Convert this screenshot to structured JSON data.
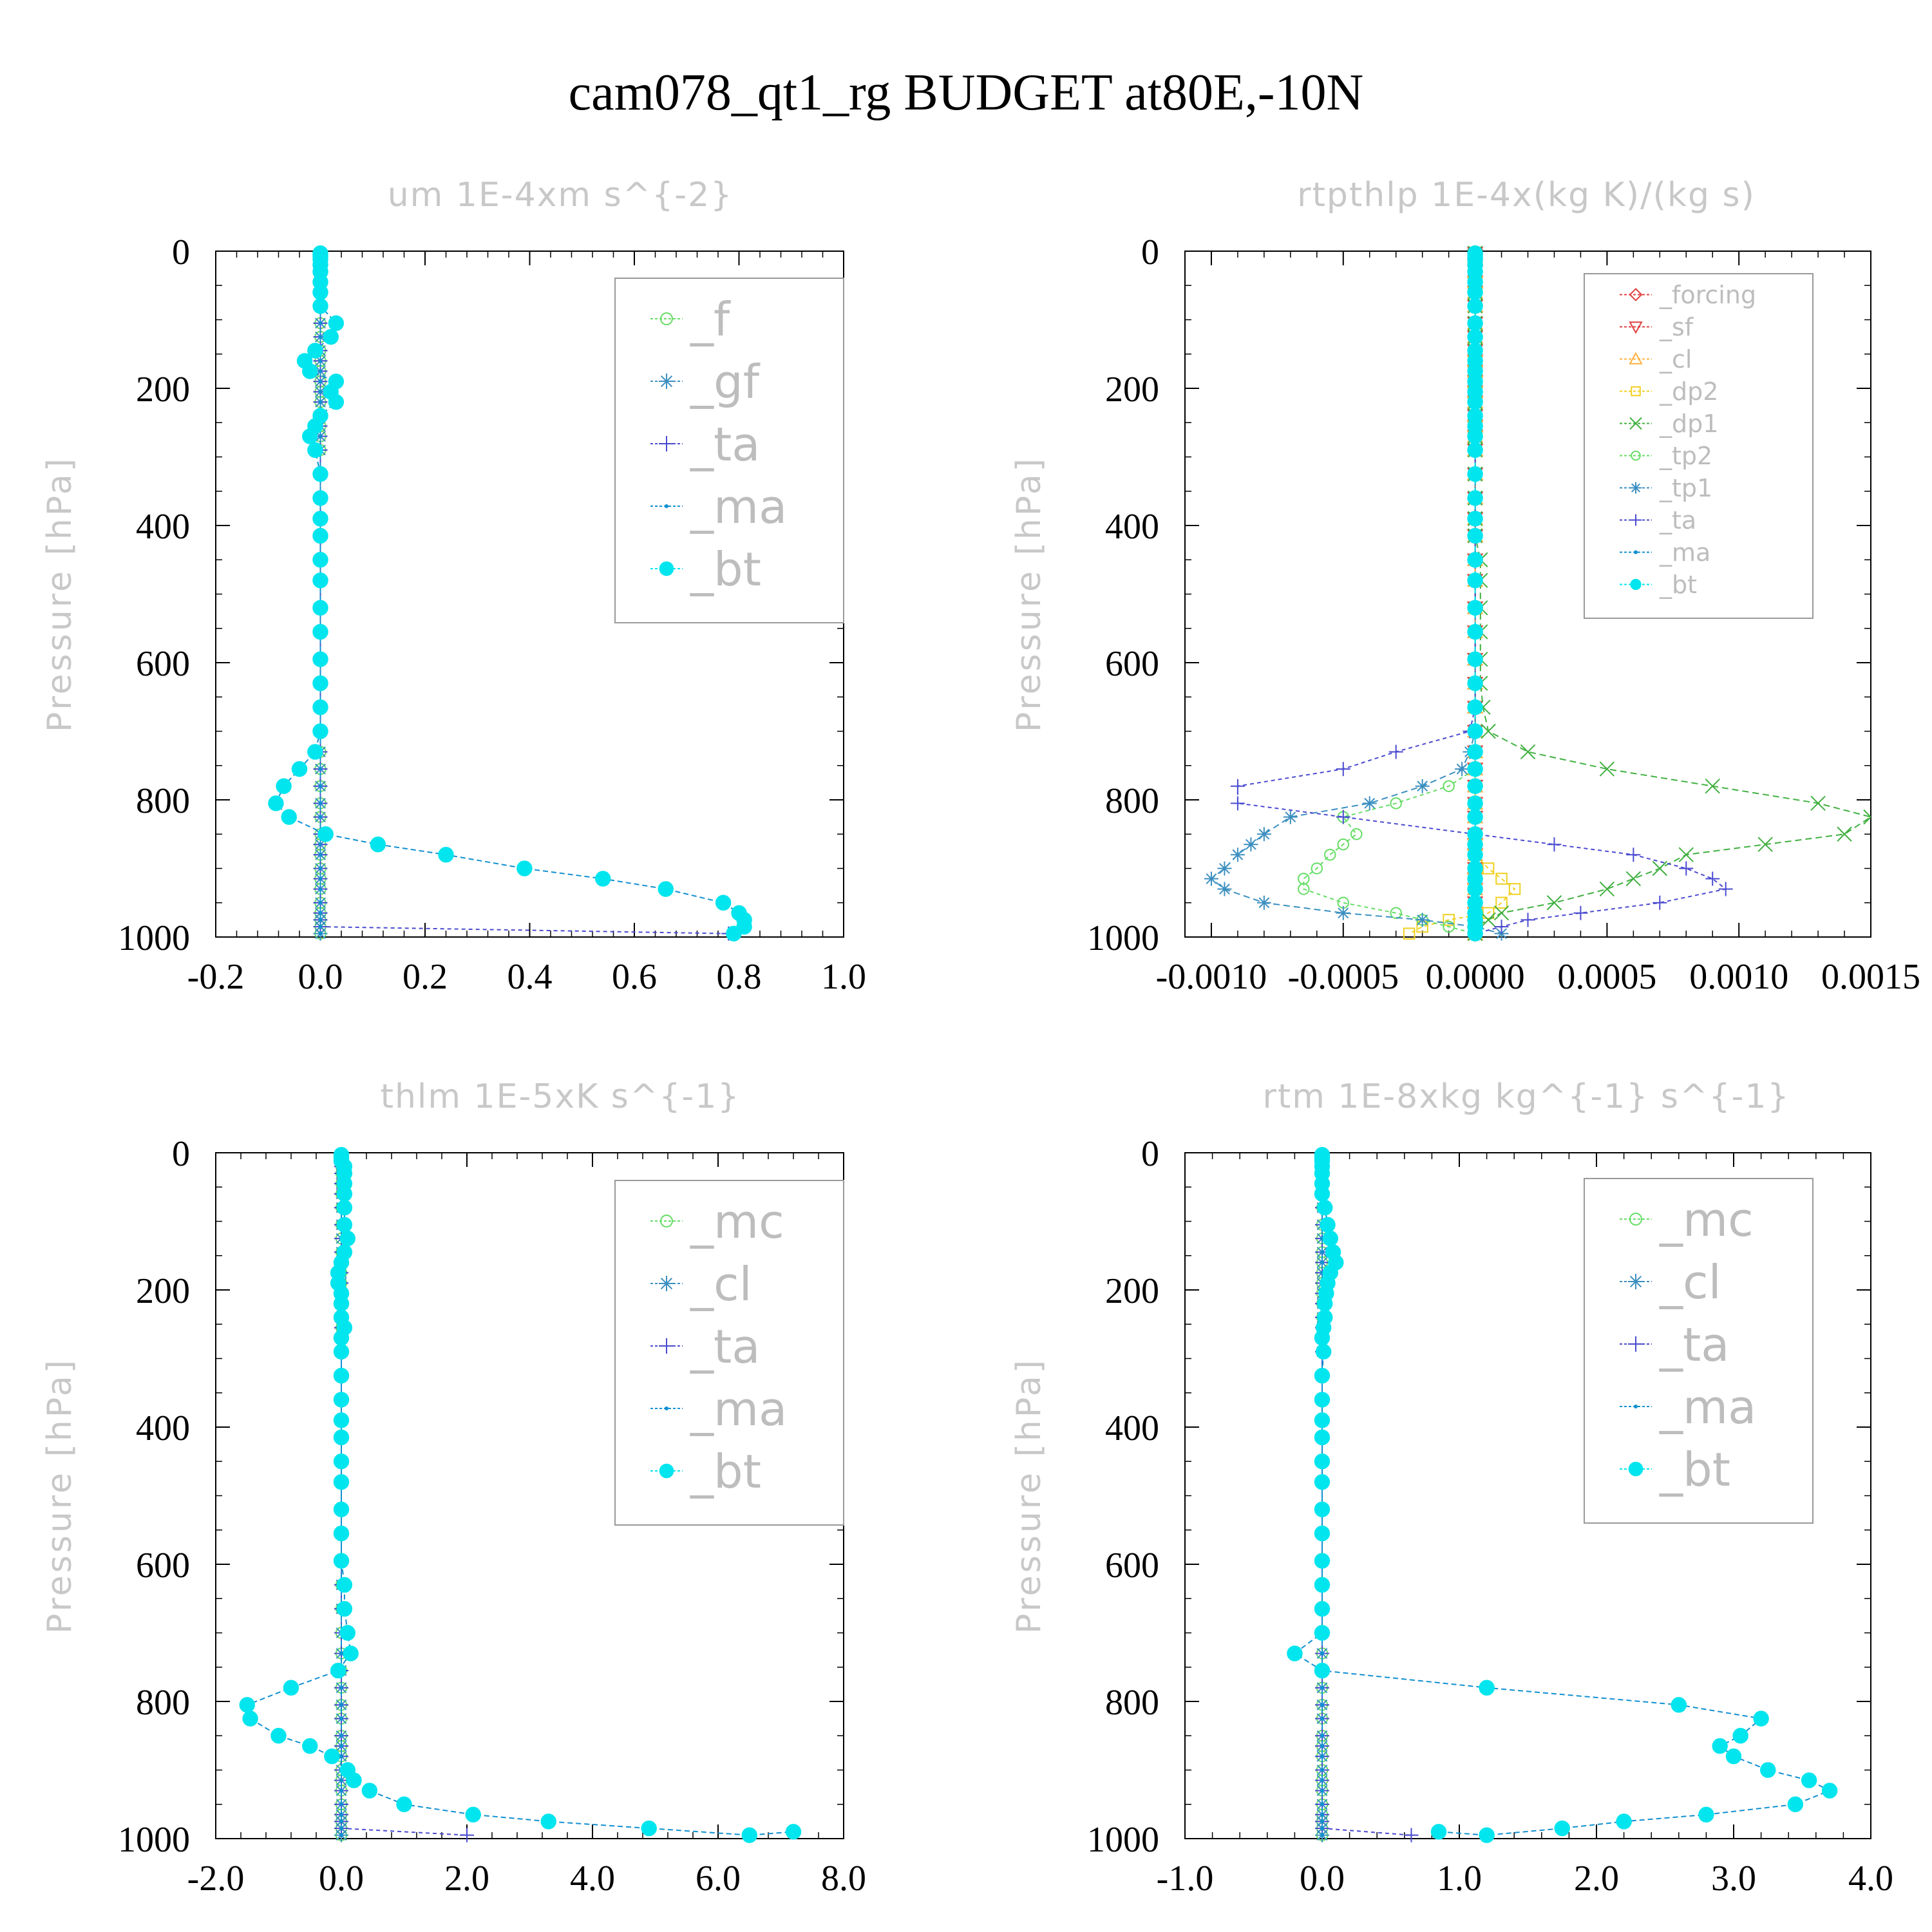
{
  "page_title": "cam078_qt1_rg  BUDGET at80E,-10N",
  "chart_data": [
    {
      "type": "line",
      "title": "um   1E-4xm s^{-2}",
      "ylabel": "Pressure [hPa]",
      "xlim": [
        -0.2,
        1.0
      ],
      "ylim": [
        0,
        1000
      ],
      "y_reversed": true,
      "xticks": [
        -0.2,
        0.0,
        0.2,
        0.4,
        0.6,
        0.8,
        1.0
      ],
      "xtick_labels": [
        "-0.2",
        "0.0",
        "0.2",
        "0.4",
        "0.6",
        "0.8",
        "1.0"
      ],
      "yticks": [
        0,
        200,
        400,
        600,
        800,
        1000
      ],
      "ytick_labels": [
        "0",
        "200",
        "400",
        "600",
        "800",
        "1000"
      ],
      "levels": [
        3,
        7,
        12,
        20,
        30,
        45,
        60,
        80,
        105,
        125,
        145,
        160,
        175,
        190,
        205,
        220,
        240,
        255,
        270,
        290,
        325,
        360,
        390,
        415,
        450,
        480,
        520,
        555,
        595,
        630,
        665,
        700,
        730,
        755,
        780,
        805,
        825,
        850,
        865,
        880,
        900,
        915,
        930,
        950,
        965,
        975,
        985,
        995
      ],
      "legend": [
        "_f",
        "_gf",
        "_ta",
        "_ma",
        "_bt"
      ],
      "series": [
        {
          "name": "_f",
          "color": "#66dd66",
          "marker": "circle-open",
          "constant": 0
        },
        {
          "name": "_gf",
          "color": "#3b8fc0",
          "marker": "star",
          "constant": 0
        },
        {
          "name": "_ta",
          "color": "#4a4ad0",
          "marker": "plus",
          "dash": "6,5",
          "values": [
            0,
            0,
            0,
            0,
            0,
            0,
            0,
            0,
            0,
            0,
            0,
            0,
            0,
            0,
            0,
            0,
            0,
            0,
            0,
            0,
            0,
            0,
            0,
            0,
            0,
            0,
            0,
            0,
            0,
            0,
            0,
            0,
            0,
            0,
            0,
            0,
            0,
            0,
            0,
            0,
            0,
            0,
            0,
            0,
            0,
            0,
            0,
            0.78
          ]
        },
        {
          "name": "_ma",
          "color": "#1090d0",
          "marker": "dot",
          "constant": 0
        },
        {
          "name": "_bt",
          "color": "#00e5ee",
          "marker": "filled",
          "line_color": "#1090d0",
          "values": [
            0,
            0,
            0,
            0,
            0,
            0,
            0,
            0,
            0.03,
            0.02,
            -0.01,
            -0.03,
            -0.02,
            0.03,
            0.02,
            0.03,
            0.0,
            -0.01,
            -0.02,
            -0.01,
            0,
            0,
            0,
            0,
            0,
            0,
            0,
            0,
            0,
            0,
            0,
            0,
            -0.01,
            -0.04,
            -0.07,
            -0.085,
            -0.06,
            0.01,
            0.11,
            0.24,
            0.39,
            0.54,
            0.66,
            0.77,
            0.8,
            0.81,
            0.81,
            0.79
          ]
        }
      ]
    },
    {
      "type": "line",
      "title": "rtpthlp   1E-4x(kg K)/(kg s)",
      "ylabel": "Pressure [hPa]",
      "xlim": [
        -0.0011,
        0.0015
      ],
      "ylim": [
        0,
        1000
      ],
      "y_reversed": true,
      "xticks": [
        -0.001,
        -0.0005,
        0.0,
        0.0005,
        0.001,
        0.0015
      ],
      "xtick_labels": [
        "-0.0010",
        "-0.0005",
        "0.0000",
        "0.0005",
        "0.0010",
        "0.0015"
      ],
      "yticks": [
        0,
        200,
        400,
        600,
        800,
        1000
      ],
      "ytick_labels": [
        "0",
        "200",
        "400",
        "600",
        "800",
        "1000"
      ],
      "levels": [
        3,
        7,
        12,
        20,
        30,
        45,
        60,
        80,
        105,
        125,
        145,
        160,
        175,
        190,
        205,
        220,
        240,
        255,
        270,
        290,
        325,
        360,
        390,
        415,
        450,
        480,
        520,
        555,
        595,
        630,
        665,
        700,
        730,
        755,
        780,
        805,
        825,
        850,
        865,
        880,
        900,
        915,
        930,
        950,
        965,
        975,
        985,
        995
      ],
      "legend": [
        "_forcing",
        "_sf",
        "_cl",
        "_dp2",
        "_dp1",
        "_tp2",
        "_tp1",
        "_ta",
        "_ma",
        "_bt"
      ],
      "series": [
        {
          "name": "_forcing",
          "color": "#e04040",
          "marker": "diamond",
          "constant": 0
        },
        {
          "name": "_sf",
          "color": "#e04040",
          "marker": "triangle-down",
          "constant": 0
        },
        {
          "name": "_cl",
          "color": "#ffb040",
          "marker": "triangle",
          "constant": 0
        },
        {
          "name": "_dp2",
          "color": "#f0d020",
          "marker": "square",
          "dash": "6,5",
          "values": [
            0,
            0,
            0,
            0,
            0,
            0,
            0,
            0,
            0,
            0,
            0,
            0,
            0,
            0,
            0,
            0,
            0,
            0,
            0,
            0,
            0,
            0,
            0,
            0,
            0,
            0,
            0,
            0,
            0,
            0,
            0,
            0,
            0,
            0,
            0,
            0,
            0,
            0,
            0,
            0,
            5e-05,
            0.0001,
            0.00015,
            0.0001,
            5e-05,
            -0.0001,
            -0.0002,
            -0.00025
          ]
        },
        {
          "name": "_dp1",
          "color": "#40b040",
          "marker": "x",
          "dash": "10,6",
          "values": [
            0,
            0,
            0,
            0,
            0,
            0,
            0,
            0,
            0,
            0,
            0,
            0,
            0,
            0,
            0,
            0,
            0,
            0,
            0,
            0,
            0,
            0,
            0,
            0,
            2e-05,
            2e-05,
            2e-05,
            2e-05,
            2e-05,
            2e-05,
            3e-05,
            5e-05,
            0.0002,
            0.0005,
            0.0009,
            0.0013,
            0.0015,
            0.0014,
            0.0011,
            0.0008,
            0.0007,
            0.0006,
            0.0005,
            0.0003,
            0.0001,
            5e-05,
            0,
            0
          ]
        },
        {
          "name": "_tp2",
          "color": "#66dd66",
          "marker": "circle-open",
          "dash": "6,5",
          "values": [
            0,
            0,
            0,
            0,
            0,
            0,
            0,
            0,
            0,
            0,
            0,
            0,
            0,
            0,
            0,
            0,
            0,
            0,
            0,
            0,
            0,
            0,
            0,
            0,
            0,
            0,
            0,
            0,
            0,
            0,
            0,
            0,
            0,
            0,
            -0.0001,
            -0.0003,
            -0.0005,
            -0.00045,
            -0.0005,
            -0.00055,
            -0.0006,
            -0.00065,
            -0.00065,
            -0.0005,
            -0.0003,
            -0.0002,
            -0.0001,
            0
          ]
        },
        {
          "name": "_tp1",
          "color": "#3b8fc0",
          "marker": "star",
          "dash": "10,6",
          "values": [
            0,
            0,
            0,
            0,
            0,
            0,
            0,
            0,
            0,
            0,
            0,
            0,
            0,
            0,
            0,
            0,
            0,
            0,
            0,
            0,
            0,
            0,
            0,
            0,
            0,
            0,
            0,
            0,
            0,
            0,
            0,
            0,
            -2e-05,
            -5e-05,
            -0.0002,
            -0.0004,
            -0.0007,
            -0.0008,
            -0.00085,
            -0.0009,
            -0.00095,
            -0.001,
            -0.00095,
            -0.0008,
            -0.0005,
            -0.0002,
            0,
            0.0001
          ]
        },
        {
          "name": "_ta",
          "color": "#4a4ad0",
          "marker": "plus",
          "dash": "6,5",
          "values": [
            0,
            0,
            0,
            0,
            0,
            0,
            0,
            0,
            0,
            0,
            0,
            0,
            0,
            0,
            0,
            0,
            0,
            0,
            0,
            0,
            0,
            0,
            0,
            0,
            0,
            0,
            0,
            0,
            0,
            0,
            0,
            -2e-05,
            -0.0003,
            -0.0005,
            -0.0009,
            -0.0009,
            -0.0005,
            0.0,
            0.0003,
            0.0006,
            0.0008,
            0.0009,
            0.00095,
            0.0007,
            0.0004,
            0.0002,
            0.0001,
            0
          ]
        },
        {
          "name": "_ma",
          "color": "#1090d0",
          "marker": "dot",
          "constant": 0
        },
        {
          "name": "_bt",
          "color": "#00e5ee",
          "marker": "filled",
          "constant": 0
        }
      ]
    },
    {
      "type": "line",
      "title": "thlm   1E-5xK s^{-1}",
      "ylabel": "Pressure [hPa]",
      "xlim": [
        -2.0,
        8.0
      ],
      "ylim": [
        0,
        1000
      ],
      "y_reversed": true,
      "xticks": [
        -2.0,
        0.0,
        2.0,
        4.0,
        6.0,
        8.0
      ],
      "xtick_labels": [
        "-2.0",
        "0.0",
        "2.0",
        "4.0",
        "6.0",
        "8.0"
      ],
      "yticks": [
        0,
        200,
        400,
        600,
        800,
        1000
      ],
      "ytick_labels": [
        "0",
        "200",
        "400",
        "600",
        "800",
        "1000"
      ],
      "levels": [
        3,
        7,
        12,
        20,
        30,
        45,
        60,
        80,
        105,
        125,
        145,
        160,
        175,
        190,
        205,
        220,
        240,
        255,
        270,
        290,
        325,
        360,
        390,
        415,
        450,
        480,
        520,
        555,
        595,
        630,
        665,
        700,
        730,
        755,
        780,
        805,
        825,
        850,
        865,
        880,
        900,
        915,
        930,
        950,
        965,
        975,
        985,
        995
      ],
      "legend": [
        "_mc",
        "_cl",
        "_ta",
        "_ma",
        "_bt"
      ],
      "series": [
        {
          "name": "_mc",
          "color": "#66dd66",
          "marker": "circle-open",
          "constant": 0
        },
        {
          "name": "_cl",
          "color": "#3b8fc0",
          "marker": "star",
          "constant": 0
        },
        {
          "name": "_ta",
          "color": "#4a4ad0",
          "marker": "plus",
          "dash": "6,5",
          "values": [
            0,
            0,
            0,
            0,
            0,
            0,
            0,
            0,
            0,
            0,
            0,
            0,
            0,
            0,
            0,
            0,
            0,
            0,
            0,
            0,
            0,
            0,
            0,
            0,
            0,
            0,
            0,
            0,
            0,
            0,
            0,
            0,
            0,
            0,
            0,
            0,
            0,
            0,
            0,
            0,
            0,
            0,
            0,
            0,
            0,
            0,
            0,
            2.0
          ]
        },
        {
          "name": "_ma",
          "color": "#1090d0",
          "marker": "dot",
          "constant": 0
        },
        {
          "name": "_bt",
          "color": "#00e5ee",
          "marker": "filled",
          "line_color": "#1090d0",
          "values": [
            0,
            0,
            0,
            0.05,
            0.05,
            0.05,
            0.05,
            0.05,
            0.05,
            0.1,
            0.05,
            0.0,
            -0.05,
            -0.05,
            0,
            0,
            0,
            0.05,
            0,
            0,
            0,
            0,
            0,
            0,
            0,
            0,
            0,
            0,
            0,
            0.05,
            0.05,
            0.1,
            0.15,
            -0.05,
            -0.8,
            -1.5,
            -1.45,
            -1.0,
            -0.5,
            -0.15,
            0.1,
            0.2,
            0.45,
            1.0,
            2.1,
            3.3,
            4.9,
            6.5
          ]
        }
      ],
      "bt_extra": {
        "p": 990,
        "x": 7.2
      }
    },
    {
      "type": "line",
      "title": "rtm   1E-8xkg kg^{-1} s^{-1}",
      "ylabel": "Pressure [hPa]",
      "xlim": [
        -1.0,
        4.0
      ],
      "ylim": [
        0,
        1000
      ],
      "y_reversed": true,
      "xticks": [
        -1.0,
        0.0,
        1.0,
        2.0,
        3.0,
        4.0
      ],
      "xtick_labels": [
        "-1.0",
        "0.0",
        "1.0",
        "2.0",
        "3.0",
        "4.0"
      ],
      "yticks": [
        0,
        200,
        400,
        600,
        800,
        1000
      ],
      "ytick_labels": [
        "0",
        "200",
        "400",
        "600",
        "800",
        "1000"
      ],
      "levels": [
        3,
        7,
        12,
        20,
        30,
        45,
        60,
        80,
        105,
        125,
        145,
        160,
        175,
        190,
        205,
        220,
        240,
        255,
        270,
        290,
        325,
        360,
        390,
        415,
        450,
        480,
        520,
        555,
        595,
        630,
        665,
        700,
        730,
        755,
        780,
        805,
        825,
        850,
        865,
        880,
        900,
        915,
        930,
        950,
        965,
        975,
        985,
        995
      ],
      "legend": [
        "_mc",
        "_cl",
        "_ta",
        "_ma",
        "_bt"
      ],
      "series": [
        {
          "name": "_mc",
          "color": "#66dd66",
          "marker": "circle-open",
          "constant": 0
        },
        {
          "name": "_cl",
          "color": "#3b8fc0",
          "marker": "star",
          "constant": 0
        },
        {
          "name": "_ta",
          "color": "#4a4ad0",
          "marker": "plus",
          "dash": "6,5",
          "values": [
            0,
            0,
            0,
            0,
            0,
            0,
            0,
            0,
            0,
            0,
            0,
            0,
            0,
            0,
            0,
            0,
            0,
            0,
            0,
            0,
            0,
            0,
            0,
            0,
            0,
            0,
            0,
            0,
            0,
            0,
            0,
            0,
            0,
            0,
            0,
            0,
            0,
            0,
            0,
            0,
            0,
            0,
            0,
            0,
            0,
            0,
            0,
            0.65
          ]
        },
        {
          "name": "_ma",
          "color": "#1090d0",
          "marker": "dot",
          "constant": 0
        },
        {
          "name": "_bt",
          "color": "#00e5ee",
          "marker": "filled",
          "line_color": "#1090d0",
          "values": [
            0,
            0,
            0,
            0,
            0,
            0,
            0,
            0.02,
            0.04,
            0.06,
            0.08,
            0.1,
            0.06,
            0.04,
            0.03,
            0.02,
            0.02,
            0.01,
            0.0,
            0.01,
            0,
            0,
            0,
            0,
            0,
            0,
            0,
            0,
            0,
            0,
            0,
            0,
            -0.2,
            0.0,
            1.2,
            2.6,
            3.2,
            3.05,
            2.9,
            3.0,
            3.25,
            3.55,
            3.7,
            3.45,
            2.8,
            2.2,
            1.75,
            1.2
          ]
        },
        {
          "name": "_bt_tail",
          "color": "#00e5ee",
          "marker": "filled",
          "hidden_in_legend": true,
          "values": []
        }
      ],
      "bt_extra": {
        "p": 990,
        "x": 0.85
      }
    }
  ]
}
